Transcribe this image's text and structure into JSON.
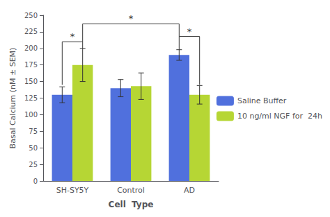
{
  "chart_data": {
    "type": "bar",
    "categories": [
      "SH-SY5Y",
      "Control",
      "AD"
    ],
    "series": [
      {
        "name": "Saline Buffer",
        "values": [
          130,
          140,
          190
        ],
        "errors": [
          12,
          13,
          8
        ]
      },
      {
        "name": "10 ng/ml NGF for  24h",
        "values": [
          175,
          143,
          130
        ],
        "errors": [
          25,
          20,
          14
        ]
      }
    ],
    "xlabel": "Cell  Type",
    "ylabel": "Basal Calcium (nM ± SEM)",
    "ylim": [
      0,
      250
    ],
    "yticks": [
      0,
      25,
      50,
      75,
      100,
      125,
      150,
      175,
      200,
      225,
      250
    ],
    "grid": false,
    "legend": "right",
    "annotations": [
      {
        "text": "*",
        "y": 210,
        "from": {
          "group": 0,
          "series": 0,
          "y": 145
        },
        "to": {
          "group": 0,
          "series": 1,
          "y": 200
        }
      },
      {
        "text": "*",
        "y": 218,
        "from": {
          "group": 2,
          "series": 0,
          "y": 198
        },
        "to": {
          "group": 2,
          "series": 1,
          "y": 145
        }
      },
      {
        "text": "*",
        "y": 237,
        "from": {
          "group": 0,
          "series": 1,
          "y": 210
        },
        "to": {
          "group": 2,
          "series": 0,
          "y": 218
        }
      }
    ]
  }
}
